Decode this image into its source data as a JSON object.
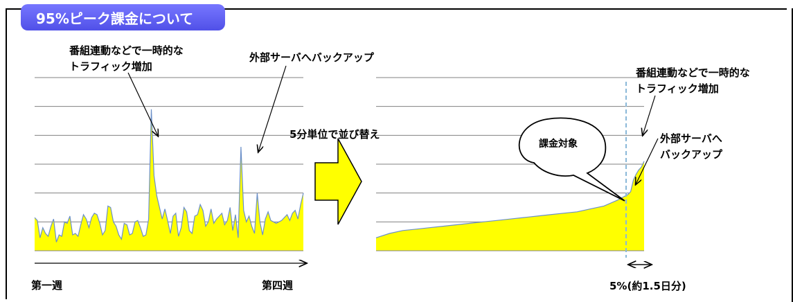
{
  "title": "95%ピーク課金について",
  "left_chart": {
    "annotation_peak1": "番組連動などで一時的な\nトラフィック増加",
    "annotation_peak2": "外部サーバへバックアップ",
    "x_start": "第一週",
    "x_end": "第四週"
  },
  "center": {
    "sort_label": "5分単位で並び替え"
  },
  "right_chart": {
    "annotation_peak1": "番組連動などで一時的な\nトラフィック増加",
    "annotation_peak2": "外部サーバへ\nバックアップ",
    "callout": "課金対象",
    "footnote": "5%(約1.5日分)"
  },
  "colors": {
    "fill": "#ffff00",
    "line": "#6a8fc8",
    "grid": "#808080",
    "arrow_fill": "#ffff00",
    "title_bg": "#5a5af0"
  },
  "chart_data": [
    {
      "type": "area",
      "x": [
        0,
        1,
        2,
        3,
        4,
        5,
        6,
        7,
        8,
        9,
        10,
        11,
        12,
        13,
        14,
        15,
        16,
        17,
        18,
        19,
        20,
        21,
        22,
        23,
        24,
        25,
        26,
        27,
        28,
        29,
        30,
        31,
        32,
        33,
        34,
        35,
        36,
        37,
        38,
        39,
        40,
        41,
        42,
        43,
        44,
        45,
        46,
        47,
        48,
        49,
        50,
        51,
        52,
        53,
        54,
        55,
        56,
        57,
        58,
        59,
        60,
        61,
        62,
        63,
        64,
        65,
        66,
        67,
        68,
        69,
        70,
        71,
        72,
        73,
        74,
        75,
        76,
        77,
        78,
        79,
        80,
        81,
        82,
        83,
        84,
        85,
        86,
        87,
        88,
        89,
        90,
        91,
        92,
        93,
        94,
        95,
        96,
        97,
        98,
        99
      ],
      "values": [
        1.15,
        1.05,
        0.45,
        0.8,
        0.6,
        0.5,
        0.85,
        1.1,
        0.3,
        0.55,
        0.5,
        1.0,
        0.95,
        1.2,
        0.55,
        0.6,
        0.5,
        0.9,
        1.25,
        1.1,
        0.8,
        1.15,
        1.3,
        1.25,
        0.95,
        0.55,
        0.7,
        1.55,
        1.5,
        1.0,
        0.85,
        0.55,
        0.4,
        0.95,
        0.9,
        0.55,
        0.6,
        1.0,
        1.05,
        0.8,
        0.5,
        0.55,
        1.1,
        4.9,
        2.6,
        1.9,
        1.5,
        1.1,
        1.45,
        1.05,
        0.6,
        1.2,
        1.3,
        0.5,
        0.8,
        1.5,
        1.35,
        0.7,
        0.6,
        1.2,
        1.25,
        1.6,
        1.4,
        0.85,
        1.0,
        1.45,
        0.95,
        1.1,
        1.2,
        1.3,
        0.9,
        1.05,
        1.5,
        0.7,
        1.25,
        0.45,
        3.6,
        1.4,
        1.0,
        1.2,
        0.85,
        0.6,
        2.0,
        1.0,
        0.55,
        1.1,
        1.35,
        1.05,
        1.0,
        0.95,
        1.0,
        1.05,
        1.15,
        1.25,
        1.05,
        1.3,
        1.4,
        1.1,
        1.6,
        2.0
      ],
      "ylim": [
        0,
        6
      ],
      "grid": true
    },
    {
      "type": "area",
      "x": [
        0,
        5,
        10,
        15,
        20,
        25,
        30,
        35,
        40,
        45,
        50,
        55,
        60,
        65,
        70,
        75,
        80,
        85,
        90,
        92,
        94,
        95,
        96,
        97,
        98,
        99,
        100
      ],
      "values": [
        0.45,
        0.6,
        0.7,
        0.75,
        0.8,
        0.85,
        0.9,
        0.95,
        1.0,
        1.05,
        1.1,
        1.15,
        1.2,
        1.25,
        1.3,
        1.35,
        1.45,
        1.55,
        1.75,
        1.85,
        1.95,
        2.05,
        2.45,
        2.65,
        2.8,
        2.9,
        3.1
      ],
      "ylim": [
        0,
        6
      ],
      "grid": true
    }
  ]
}
